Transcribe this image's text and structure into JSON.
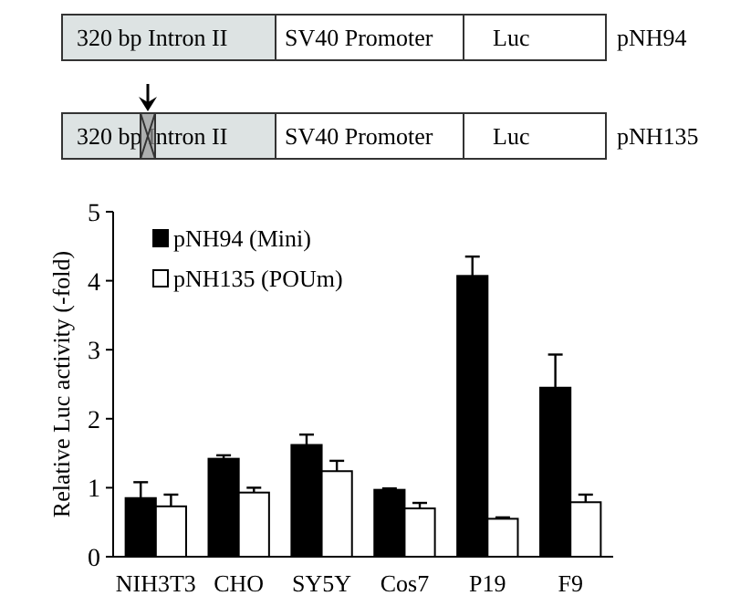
{
  "chart_data": {
    "type": "bar",
    "ylabel": "Relative Luc activity (-fold)",
    "categories": [
      "NIH3T3",
      "CHO",
      "SY5Y",
      "Cos7",
      "P19",
      "F9"
    ],
    "series": [
      {
        "name": "pNH94 (Mini)",
        "color": "#000000",
        "values": [
          0.85,
          1.42,
          1.62,
          0.97,
          4.07,
          2.45
        ],
        "errors": [
          [
            0.85,
            1.08
          ],
          [
            1.42,
            1.47
          ],
          [
            1.62,
            1.77
          ],
          [
            0.97,
            0.99
          ],
          [
            4.07,
            4.35
          ],
          [
            2.45,
            2.93
          ]
        ]
      },
      {
        "name": "pNH135 (POUm)",
        "color": "#ffffff",
        "values": [
          0.73,
          0.93,
          1.24,
          0.7,
          0.55,
          0.79
        ],
        "errors": [
          [
            0.73,
            0.9
          ],
          [
            0.93,
            1.0
          ],
          [
            1.24,
            1.39
          ],
          [
            0.7,
            0.78
          ],
          [
            0.55,
            0.57
          ],
          [
            0.79,
            0.9
          ]
        ]
      }
    ],
    "ylim": [
      0,
      5
    ],
    "yticks": [
      0,
      1,
      2,
      3,
      4,
      5
    ],
    "legend": "top left",
    "annotations": [
      "320 bp Intron II",
      "SV40 Promoter",
      "Luc",
      "pNH94",
      "pNH135"
    ]
  }
}
